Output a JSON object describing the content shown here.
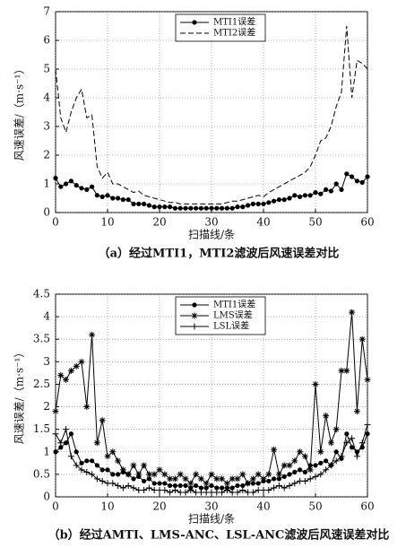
{
  "chart_data": [
    {
      "type": "line",
      "title": "（a）经过MTI1，MTI2滤波后风速误差对比",
      "xlabel": "扫描线/条",
      "ylabel": "风速误差/（m·s⁻¹）",
      "x": [
        0,
        1,
        2,
        3,
        4,
        5,
        6,
        7,
        8,
        9,
        10,
        11,
        12,
        13,
        14,
        15,
        16,
        17,
        18,
        19,
        20,
        21,
        22,
        23,
        24,
        25,
        26,
        27,
        28,
        29,
        30,
        31,
        32,
        33,
        34,
        35,
        36,
        37,
        38,
        39,
        40,
        41,
        42,
        43,
        44,
        45,
        46,
        47,
        48,
        49,
        50,
        51,
        52,
        53,
        54,
        55,
        56,
        57,
        58,
        59,
        60
      ],
      "xlim": [
        0,
        60
      ],
      "xticks": [
        0,
        10,
        20,
        30,
        40,
        50,
        60
      ],
      "ylim": [
        0,
        7
      ],
      "yticks": [
        0,
        1,
        2,
        3,
        4,
        5,
        6,
        7
      ],
      "grid": true,
      "legend": "upper center",
      "series": [
        {
          "name": "MTI1误差",
          "color": "#000000",
          "marker": "circle",
          "dash": false,
          "values": [
            1.2,
            0.9,
            1.0,
            1.1,
            0.95,
            0.85,
            0.8,
            0.9,
            0.6,
            0.55,
            0.6,
            0.5,
            0.5,
            0.45,
            0.45,
            0.3,
            0.3,
            0.3,
            0.25,
            0.2,
            0.2,
            0.2,
            0.2,
            0.15,
            0.15,
            0.15,
            0.15,
            0.15,
            0.15,
            0.15,
            0.15,
            0.15,
            0.15,
            0.15,
            0.15,
            0.2,
            0.2,
            0.25,
            0.3,
            0.3,
            0.3,
            0.35,
            0.4,
            0.45,
            0.45,
            0.5,
            0.6,
            0.55,
            0.6,
            0.6,
            0.7,
            0.65,
            0.8,
            0.75,
            1.0,
            0.8,
            1.35,
            1.25,
            1.1,
            1.05,
            1.25
          ]
        },
        {
          "name": "MTI2误差",
          "color": "#000000",
          "marker": "none",
          "dash": true,
          "values": [
            5.0,
            3.3,
            2.8,
            3.5,
            4.0,
            4.3,
            3.3,
            3.4,
            1.6,
            1.2,
            1.4,
            1.0,
            1.0,
            0.9,
            0.8,
            0.7,
            0.75,
            0.6,
            0.55,
            0.5,
            0.45,
            0.4,
            0.35,
            0.35,
            0.3,
            0.3,
            0.3,
            0.3,
            0.3,
            0.3,
            0.3,
            0.3,
            0.3,
            0.35,
            0.4,
            0.4,
            0.45,
            0.5,
            0.55,
            0.6,
            0.55,
            0.7,
            0.8,
            0.9,
            1.0,
            1.1,
            1.2,
            1.3,
            1.4,
            1.6,
            2.0,
            2.5,
            2.6,
            3.0,
            3.7,
            4.2,
            6.5,
            4.0,
            5.3,
            5.2,
            5.0
          ]
        }
      ]
    },
    {
      "type": "line",
      "title": "（b）经过AMTI、LMS-ANC、LSL-ANC滤波后风速误差对比",
      "xlabel": "扫描线/条",
      "ylabel": "风速误差/（m·s⁻¹）",
      "x": [
        0,
        1,
        2,
        3,
        4,
        5,
        6,
        7,
        8,
        9,
        10,
        11,
        12,
        13,
        14,
        15,
        16,
        17,
        18,
        19,
        20,
        21,
        22,
        23,
        24,
        25,
        26,
        27,
        28,
        29,
        30,
        31,
        32,
        33,
        34,
        35,
        36,
        37,
        38,
        39,
        40,
        41,
        42,
        43,
        44,
        45,
        46,
        47,
        48,
        49,
        50,
        51,
        52,
        53,
        54,
        55,
        56,
        57,
        58,
        59,
        60
      ],
      "xlim": [
        0,
        60
      ],
      "xticks": [
        0,
        10,
        20,
        30,
        40,
        50,
        60
      ],
      "ylim": [
        0,
        4.5
      ],
      "yticks": [
        0,
        0.5,
        1,
        1.5,
        2,
        2.5,
        3,
        3.5,
        4,
        4.5
      ],
      "grid": true,
      "legend": "upper center",
      "series": [
        {
          "name": "MTI1误差",
          "color": "#000000",
          "marker": "circle",
          "dash": false,
          "values": [
            1.0,
            1.1,
            1.2,
            1.4,
            1.0,
            0.75,
            0.8,
            0.8,
            0.7,
            0.6,
            0.6,
            0.5,
            0.5,
            0.55,
            0.5,
            0.4,
            0.45,
            0.35,
            0.4,
            0.3,
            0.3,
            0.3,
            0.25,
            0.25,
            0.25,
            0.25,
            0.2,
            0.25,
            0.2,
            0.2,
            0.25,
            0.2,
            0.2,
            0.2,
            0.2,
            0.25,
            0.25,
            0.3,
            0.3,
            0.3,
            0.35,
            0.35,
            0.4,
            0.4,
            0.45,
            0.5,
            0.55,
            0.6,
            0.55,
            0.7,
            0.7,
            0.75,
            0.8,
            0.7,
            1.0,
            0.85,
            1.4,
            1.1,
            1.0,
            1.1,
            1.4
          ]
        },
        {
          "name": "LMS误差",
          "color": "#000000",
          "marker": "star",
          "dash": false,
          "values": [
            1.9,
            2.7,
            2.6,
            2.8,
            2.9,
            3.0,
            2.0,
            3.6,
            1.2,
            1.7,
            0.9,
            1.0,
            0.8,
            0.6,
            0.5,
            0.7,
            0.5,
            0.7,
            0.5,
            0.5,
            0.6,
            0.5,
            0.4,
            0.4,
            0.5,
            0.4,
            0.3,
            0.5,
            0.4,
            0.3,
            0.5,
            0.4,
            0.4,
            0.3,
            0.4,
            0.4,
            0.5,
            0.3,
            0.4,
            0.5,
            0.4,
            0.5,
            1.05,
            0.5,
            0.7,
            0.7,
            0.8,
            1.0,
            0.9,
            0.6,
            2.5,
            1.0,
            1.8,
            1.2,
            1.5,
            2.8,
            2.8,
            4.1,
            1.9,
            3.5,
            2.6
          ]
        },
        {
          "name": "LSL误差",
          "color": "#000000",
          "marker": "plus",
          "dash": false,
          "values": [
            1.4,
            1.2,
            1.5,
            0.9,
            0.7,
            0.6,
            0.55,
            0.5,
            0.4,
            0.35,
            0.3,
            0.3,
            0.25,
            0.2,
            0.25,
            0.2,
            0.15,
            0.15,
            0.2,
            0.15,
            0.15,
            0.15,
            0.1,
            0.15,
            0.1,
            0.1,
            0.15,
            0.1,
            0.1,
            0.1,
            0.1,
            0.1,
            0.1,
            0.15,
            0.1,
            0.1,
            0.15,
            0.1,
            0.1,
            0.15,
            0.15,
            0.15,
            0.2,
            0.25,
            0.2,
            0.25,
            0.3,
            0.35,
            0.35,
            0.4,
            0.45,
            0.5,
            0.6,
            0.7,
            0.8,
            0.9,
            1.2,
            1.3,
            0.9,
            1.2,
            1.6
          ]
        }
      ]
    }
  ]
}
